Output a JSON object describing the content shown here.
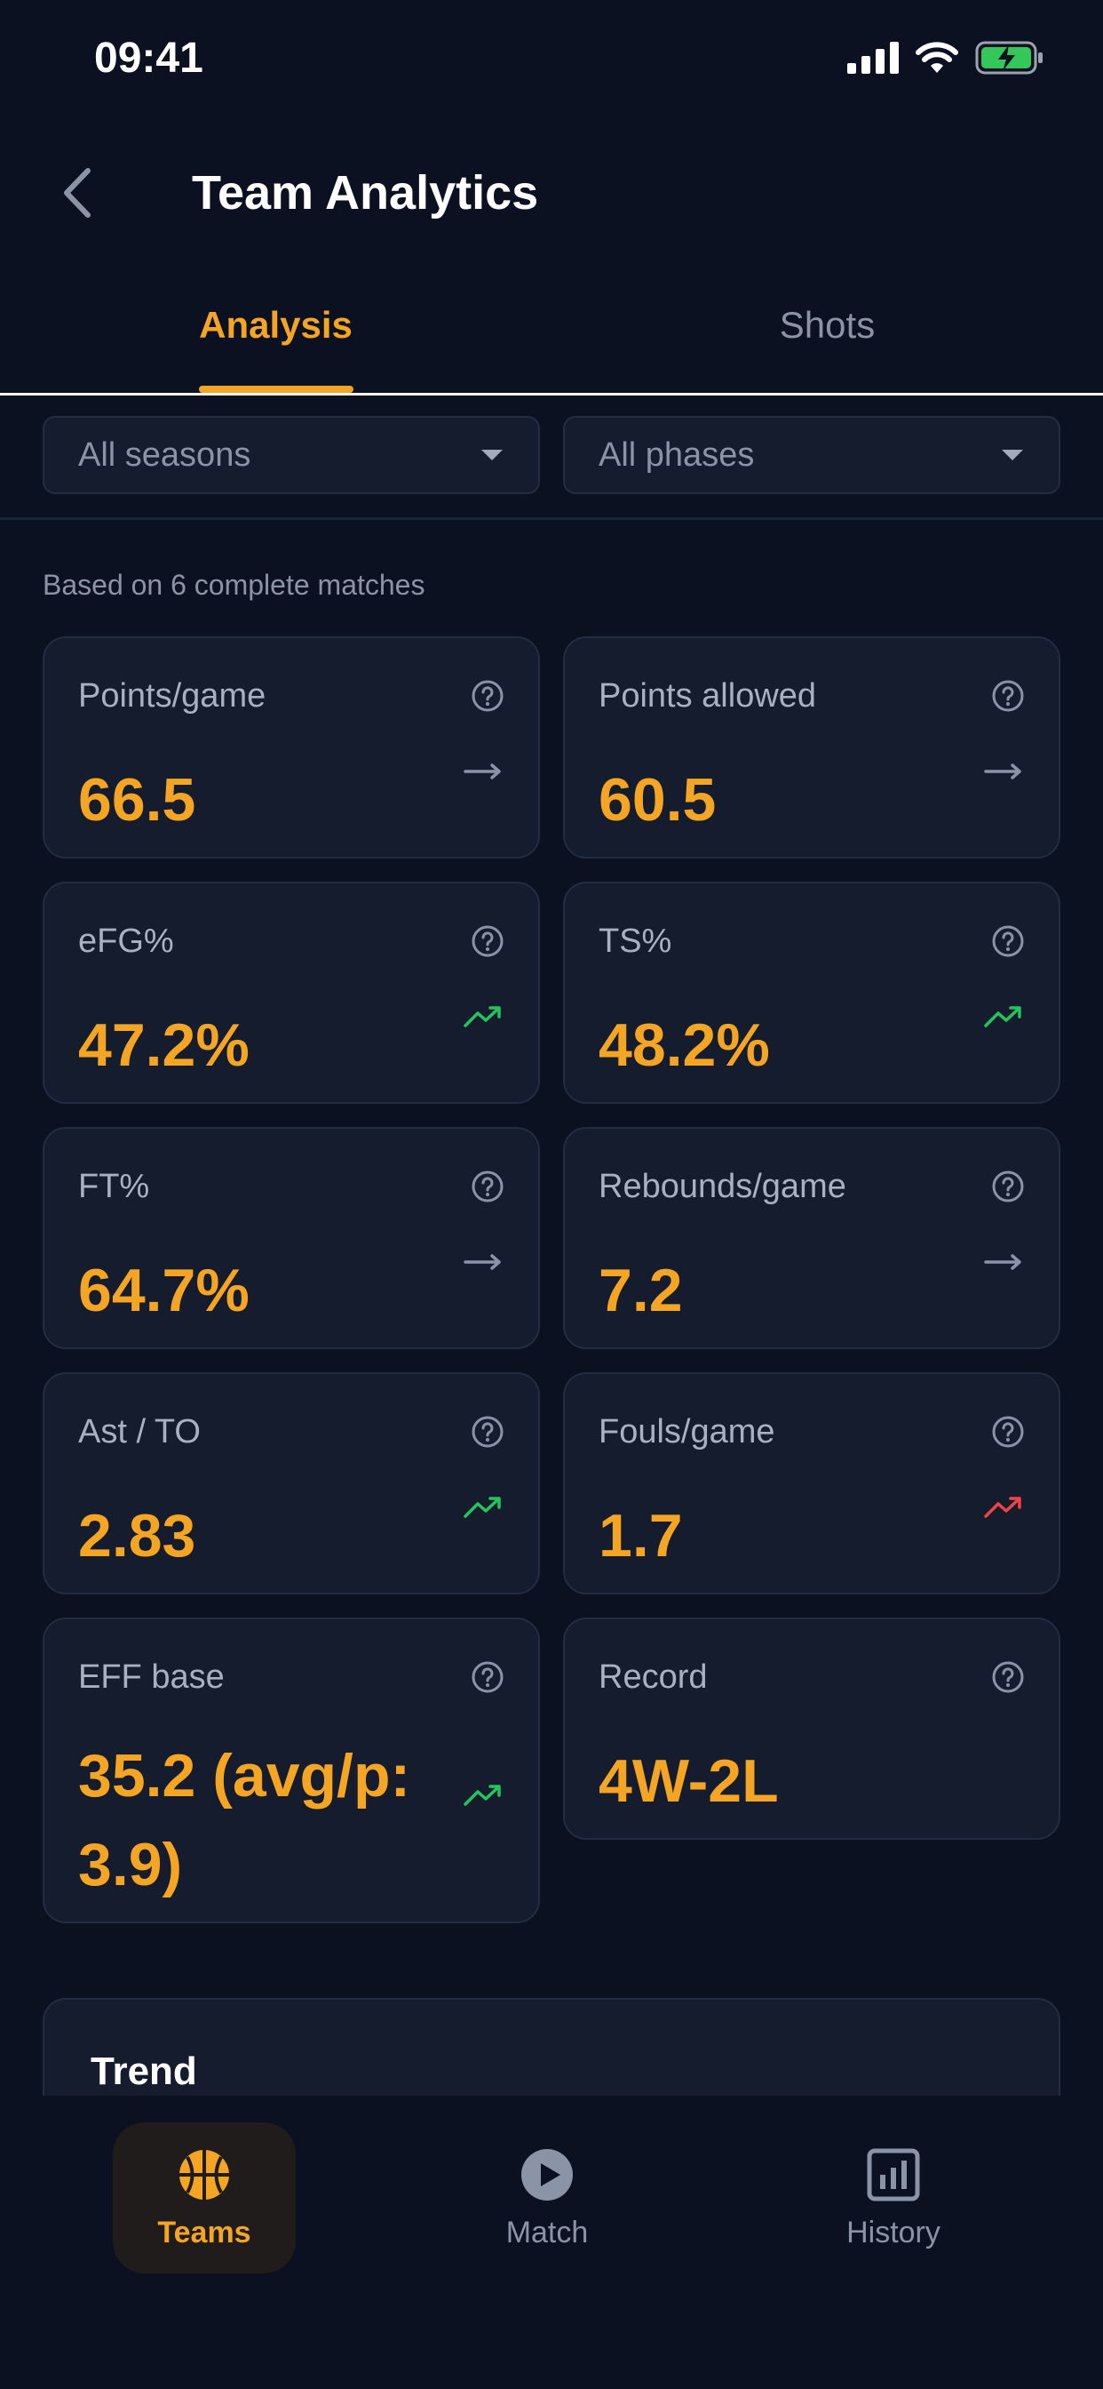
{
  "status_bar": {
    "time": "09:41"
  },
  "header": {
    "title": "Team Analytics"
  },
  "tabs": [
    {
      "label": "Analysis",
      "active": true
    },
    {
      "label": "Shots",
      "active": false
    }
  ],
  "filters": {
    "season": "All seasons",
    "phase": "All phases"
  },
  "summary": "Based on 6 complete matches",
  "stats": [
    {
      "label": "Points/game",
      "value": "66.5",
      "trend": "neutral"
    },
    {
      "label": "Points allowed",
      "value": "60.5",
      "trend": "neutral"
    },
    {
      "label": "eFG%",
      "value": "47.2%",
      "trend": "up-good"
    },
    {
      "label": "TS%",
      "value": "48.2%",
      "trend": "up-good"
    },
    {
      "label": "FT%",
      "value": "64.7%",
      "trend": "neutral"
    },
    {
      "label": "Rebounds/game",
      "value": "7.2",
      "trend": "neutral"
    },
    {
      "label": "Ast / TO",
      "value": "2.83",
      "trend": "up-good"
    },
    {
      "label": "Fouls/game",
      "value": "1.7",
      "trend": "up-bad"
    },
    {
      "label": "EFF base",
      "value": "35.2 (avg/p: 3.9)",
      "trend": "up-good"
    },
    {
      "label": "Record",
      "value": "4W-2L",
      "trend": "none"
    }
  ],
  "trend_section": {
    "title": "Trend"
  },
  "bottom_nav": [
    {
      "label": "Teams",
      "icon": "basketball-icon",
      "active": true
    },
    {
      "label": "Match",
      "icon": "play-circle-icon",
      "active": false
    },
    {
      "label": "History",
      "icon": "bar-chart-icon",
      "active": false
    }
  ],
  "colors": {
    "background": "#0b1120",
    "card": "#141c2d",
    "accent": "#f5a524",
    "trend_good": "#22c55e",
    "trend_bad": "#ef4444",
    "muted": "#8b94a7"
  }
}
